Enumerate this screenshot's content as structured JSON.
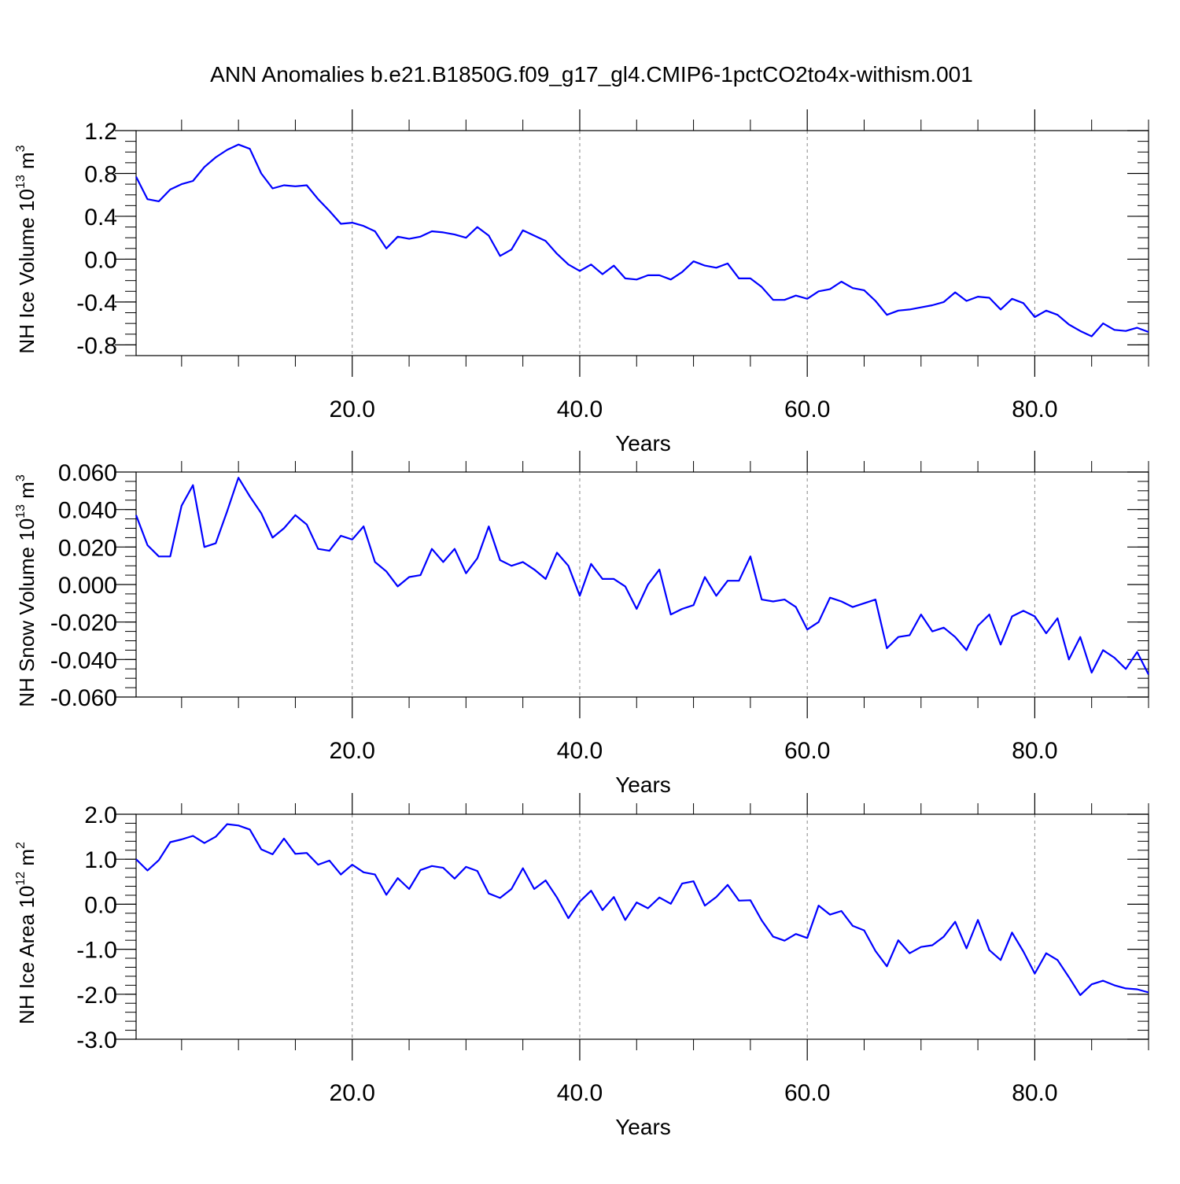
{
  "figure": {
    "title": "ANN Anomalies b.e21.B1850G.f09_g17_gl4.CMIP6-1pctCO2to4x-withism.001"
  },
  "chart_data": [
    {
      "type": "line",
      "xlabel": "Years",
      "ylabel": {
        "main": "NH Ice Volume 10",
        "sup": "13",
        "unit": " m",
        "unit_sup": "3"
      },
      "xlim": [
        1,
        90
      ],
      "ylim": [
        -0.9,
        1.2
      ],
      "x_ticks": [
        20,
        40,
        60,
        80
      ],
      "x_tick_labels": [
        "20.0",
        "40.0",
        "60.0",
        "80.0"
      ],
      "y_ticks": [
        1.2,
        0.8,
        0.4,
        0.0,
        -0.4,
        -0.8
      ],
      "y_tick_labels": [
        "1.2",
        "0.8",
        "0.4",
        "0.0",
        "-0.4",
        "-0.8"
      ],
      "y_minor_step": 0.1,
      "grid": "vertical dashed at major x ticks",
      "line_color": "#0000ff",
      "series": [
        {
          "values": [
            0.77,
            0.56,
            0.54,
            0.65,
            0.7,
            0.73,
            0.86,
            0.95,
            1.02,
            1.07,
            1.03,
            0.8,
            0.66,
            0.69,
            0.68,
            0.69,
            0.56,
            0.45,
            0.33,
            0.34,
            0.31,
            0.26,
            0.1,
            0.21,
            0.19,
            0.21,
            0.26,
            0.25,
            0.23,
            0.2,
            0.3,
            0.22,
            0.03,
            0.09,
            0.27,
            0.22,
            0.17,
            0.05,
            -0.05,
            -0.11,
            -0.05,
            -0.14,
            -0.06,
            -0.18,
            -0.19,
            -0.15,
            -0.15,
            -0.19,
            -0.12,
            -0.02,
            -0.06,
            -0.08,
            -0.04,
            -0.18,
            -0.18,
            -0.26,
            -0.38,
            -0.38,
            -0.34,
            -0.37,
            -0.3,
            -0.28,
            -0.21,
            -0.27,
            -0.29,
            -0.39,
            -0.52,
            -0.48,
            -0.47,
            -0.45,
            -0.43,
            -0.4,
            -0.31,
            -0.39,
            -0.35,
            -0.36,
            -0.47,
            -0.37,
            -0.41,
            -0.54,
            -0.48,
            -0.52,
            -0.61,
            -0.67,
            -0.72,
            -0.6,
            -0.66,
            -0.67,
            -0.64,
            -0.68
          ]
        }
      ]
    },
    {
      "type": "line",
      "xlabel": "Years",
      "ylabel": {
        "main": "NH Snow Volume 10",
        "sup": "13",
        "unit": " m",
        "unit_sup": "3"
      },
      "xlim": [
        1,
        90
      ],
      "ylim": [
        -0.06,
        0.06
      ],
      "x_ticks": [
        20,
        40,
        60,
        80
      ],
      "x_tick_labels": [
        "20.0",
        "40.0",
        "60.0",
        "80.0"
      ],
      "y_ticks": [
        0.06,
        0.04,
        0.02,
        0.0,
        -0.02,
        -0.04,
        -0.06
      ],
      "y_tick_labels": [
        "0.060",
        "0.040",
        "0.020",
        "0.000",
        "-0.020",
        "-0.040",
        "-0.060"
      ],
      "y_minor_step": 0.005,
      "grid": "vertical dashed at major x ticks",
      "line_color": "#0000ff",
      "series": [
        {
          "values": [
            0.037,
            0.021,
            0.015,
            0.015,
            0.042,
            0.053,
            0.02,
            0.022,
            0.039,
            0.057,
            0.047,
            0.038,
            0.025,
            0.03,
            0.037,
            0.032,
            0.019,
            0.018,
            0.026,
            0.024,
            0.031,
            0.012,
            0.007,
            -0.001,
            0.004,
            0.005,
            0.019,
            0.012,
            0.019,
            0.006,
            0.014,
            0.031,
            0.013,
            0.01,
            0.012,
            0.008,
            0.003,
            0.017,
            0.01,
            -0.006,
            0.011,
            0.003,
            0.003,
            -0.001,
            -0.013,
            0.0,
            0.008,
            -0.016,
            -0.013,
            -0.011,
            0.004,
            -0.006,
            0.002,
            0.002,
            0.015,
            -0.008,
            -0.009,
            -0.008,
            -0.012,
            -0.024,
            -0.02,
            -0.007,
            -0.009,
            -0.012,
            -0.01,
            -0.008,
            -0.034,
            -0.028,
            -0.027,
            -0.016,
            -0.025,
            -0.023,
            -0.028,
            -0.035,
            -0.022,
            -0.016,
            -0.032,
            -0.017,
            -0.014,
            -0.017,
            -0.026,
            -0.018,
            -0.04,
            -0.028,
            -0.047,
            -0.035,
            -0.039,
            -0.045,
            -0.036,
            -0.048
          ]
        }
      ]
    },
    {
      "type": "line",
      "xlabel": "Years",
      "ylabel": {
        "main": "NH Ice Area 10",
        "sup": "12",
        "unit": " m",
        "unit_sup": "2"
      },
      "xlim": [
        1,
        90
      ],
      "ylim": [
        -3.0,
        2.0
      ],
      "x_ticks": [
        20,
        40,
        60,
        80
      ],
      "x_tick_labels": [
        "20.0",
        "40.0",
        "60.0",
        "80.0"
      ],
      "y_ticks": [
        2.0,
        1.0,
        0.0,
        -1.0,
        -2.0,
        -3.0
      ],
      "y_tick_labels": [
        "2.0",
        "1.0",
        "0.0",
        "-1.0",
        "-2.0",
        "-3.0"
      ],
      "y_minor_step": 0.2,
      "grid": "vertical dashed at major x ticks",
      "line_color": "#0000ff",
      "series": [
        {
          "values": [
            1.0,
            0.75,
            0.98,
            1.38,
            1.44,
            1.52,
            1.36,
            1.5,
            1.78,
            1.75,
            1.66,
            1.22,
            1.11,
            1.46,
            1.12,
            1.14,
            0.88,
            0.97,
            0.66,
            0.88,
            0.71,
            0.66,
            0.21,
            0.58,
            0.34,
            0.76,
            0.85,
            0.81,
            0.57,
            0.83,
            0.74,
            0.24,
            0.14,
            0.34,
            0.8,
            0.34,
            0.53,
            0.15,
            -0.31,
            0.06,
            0.3,
            -0.13,
            0.16,
            -0.35,
            0.04,
            -0.09,
            0.15,
            0.01,
            0.46,
            0.51,
            -0.03,
            0.16,
            0.43,
            0.08,
            0.09,
            -0.36,
            -0.72,
            -0.81,
            -0.66,
            -0.75,
            -0.03,
            -0.23,
            -0.15,
            -0.48,
            -0.58,
            -1.04,
            -1.38,
            -0.8,
            -1.09,
            -0.95,
            -0.91,
            -0.72,
            -0.39,
            -0.98,
            -0.35,
            -1.02,
            -1.24,
            -0.63,
            -1.05,
            -1.54,
            -1.09,
            -1.24,
            -1.62,
            -2.02,
            -1.78,
            -1.7,
            -1.8,
            -1.87,
            -1.89,
            -1.96
          ]
        }
      ]
    }
  ]
}
